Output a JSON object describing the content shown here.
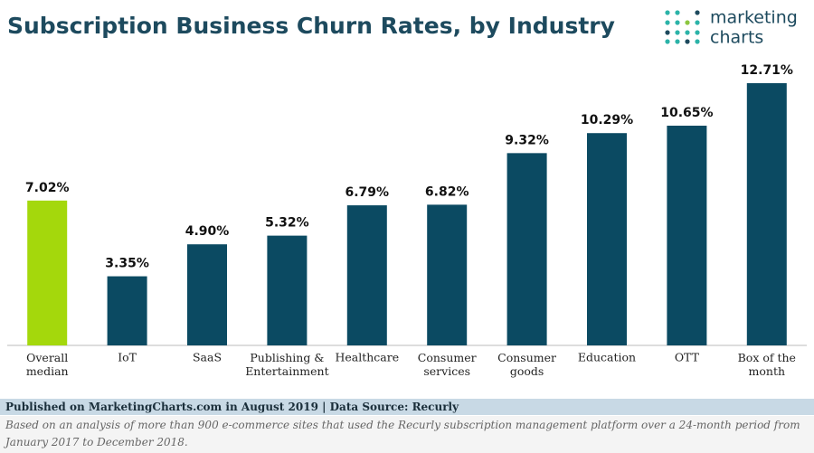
{
  "chart_data": {
    "type": "bar",
    "title": "Subscription Business Churn Rates, by Industry",
    "categories": [
      "Overall\nmedian",
      "IoT",
      "SaaS",
      "Publishing &\nEntertainment",
      "Healthcare",
      "Consumer\nservices",
      "Consumer\ngoods",
      "Education",
      "OTT",
      "Box of the\nmonth"
    ],
    "values": [
      7.02,
      3.35,
      4.9,
      5.32,
      6.79,
      6.82,
      9.32,
      10.29,
      10.65,
      12.71
    ],
    "value_labels": [
      "7.02%",
      "3.35%",
      "4.90%",
      "5.32%",
      "6.79%",
      "6.82%",
      "9.32%",
      "10.29%",
      "10.65%",
      "12.71%"
    ],
    "colors": [
      "#a4d80c",
      "#0b4a62",
      "#0b4a62",
      "#0b4a62",
      "#0b4a62",
      "#0b4a62",
      "#0b4a62",
      "#0b4a62",
      "#0b4a62",
      "#0b4a62"
    ]
  },
  "logo": [
    "marketing",
    "charts"
  ],
  "footer": {
    "source": "Published on MarketingCharts.com in August 2019 | Data Source: Recurly",
    "note": "Based on an analysis of more than 900 e-commerce sites that used the Recurly subscription management platform over a 24-month period from January 2017 to December 2018."
  }
}
